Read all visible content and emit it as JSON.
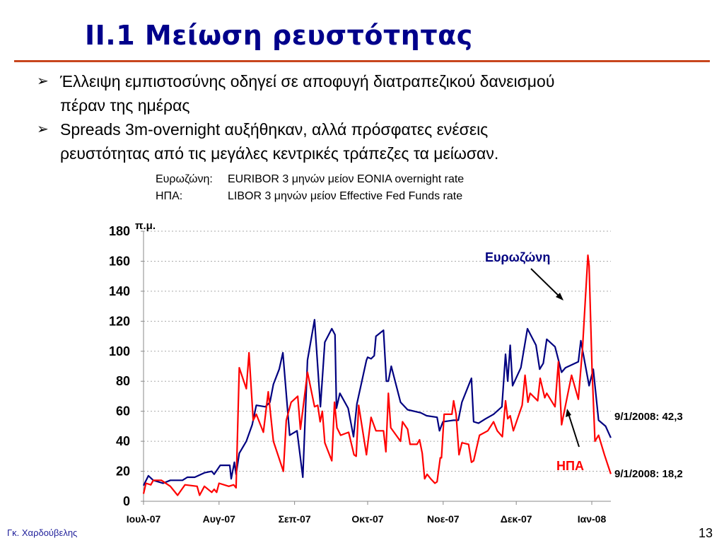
{
  "slide": {
    "title": "ΙΙ.1  Μείωση ρευστότητας",
    "bullets": [
      {
        "line1": "Έλλειψη εμπιστοσύνης οδηγεί σε αποφυγή διατραπεζικού δανεισμού",
        "line2": "πέραν της ημέρας"
      },
      {
        "line1": "Spreads 3m-overnight αυξήθηκαν, αλλά πρόσφατες ενέσεις",
        "line2": "ρευστότητας από τις μεγάλες κεντρικές τράπεζες τα μείωσαν."
      }
    ],
    "notes": [
      {
        "key": "Ευρωζώνη:",
        "value": "EURIBOR 3 μηνών μείον EONIA overnight rate"
      },
      {
        "key": "ΗΠΑ:",
        "value": "LIBOR 3 μηνών μείον Effective Fed Funds rate"
      }
    ],
    "author": "Γκ. Χαρδούβελης",
    "page_number": "13"
  },
  "chart_data": {
    "type": "line",
    "ylabel": "π.μ.",
    "ylim": [
      0,
      180
    ],
    "yticks": [
      "0",
      "20",
      "40",
      "60",
      "80",
      "100",
      "120",
      "140",
      "160",
      "180"
    ],
    "xlim_days_from_jul1_2007": [
      0,
      192
    ],
    "xticks": [
      {
        "label": "Ιουλ-07",
        "day": 0
      },
      {
        "label": "Αυγ-07",
        "day": 31
      },
      {
        "label": "Σεπ-07",
        "day": 62
      },
      {
        "label": "Οκτ-07",
        "day": 92
      },
      {
        "label": "Νοε-07",
        "day": 123
      },
      {
        "label": "Δεκ-07",
        "day": 153
      },
      {
        "label": "Ιαν-08",
        "day": 184
      }
    ],
    "grid": "horizontal-dotted",
    "series": [
      {
        "name": "Ευρωζώνη",
        "color": "#000080",
        "end_label": "9/1/2008: 42,3",
        "points": [
          [
            0,
            10.5
          ],
          [
            2,
            17
          ],
          [
            4,
            14
          ],
          [
            8,
            12
          ],
          [
            11,
            14
          ],
          [
            16,
            14
          ],
          [
            18,
            16
          ],
          [
            21,
            16
          ],
          [
            25,
            19
          ],
          [
            28,
            20
          ],
          [
            29,
            18
          ],
          [
            31.5,
            24
          ],
          [
            35.4,
            24
          ],
          [
            36,
            15
          ],
          [
            37.3,
            26
          ],
          [
            38,
            18
          ],
          [
            39.3,
            32
          ],
          [
            42.2,
            40
          ],
          [
            44.6,
            51
          ],
          [
            46.3,
            64
          ],
          [
            50,
            63
          ],
          [
            51.9,
            66
          ],
          [
            53.3,
            78
          ],
          [
            55.7,
            88
          ],
          [
            57.2,
            99
          ],
          [
            60,
            44
          ],
          [
            63,
            47
          ],
          [
            65.4,
            16
          ],
          [
            67.3,
            94
          ],
          [
            70.2,
            121
          ],
          [
            72.6,
            63
          ],
          [
            74.4,
            106
          ],
          [
            77.3,
            115
          ],
          [
            78.6,
            111
          ],
          [
            79.2,
            62
          ],
          [
            80.6,
            72
          ],
          [
            84,
            62
          ],
          [
            86.2,
            43
          ],
          [
            87.6,
            65
          ],
          [
            91.5,
            94
          ],
          [
            92,
            96
          ],
          [
            93.4,
            95
          ],
          [
            94.7,
            97
          ],
          [
            95.4,
            110
          ],
          [
            98.5,
            114
          ],
          [
            99.7,
            80
          ],
          [
            100.5,
            80
          ],
          [
            101.7,
            90
          ],
          [
            105.5,
            66
          ],
          [
            108.4,
            61
          ],
          [
            113.8,
            59
          ],
          [
            116.2,
            57
          ],
          [
            120.5,
            56
          ],
          [
            121.5,
            47
          ],
          [
            122.9,
            53
          ],
          [
            127.3,
            54
          ],
          [
            129.2,
            54
          ],
          [
            130.7,
            66
          ],
          [
            134.1,
            80
          ],
          [
            134.6,
            82
          ],
          [
            135.5,
            53
          ],
          [
            137.5,
            52
          ],
          [
            140.4,
            55
          ],
          [
            143.7,
            58
          ],
          [
            147.1,
            63
          ],
          [
            148.6,
            98
          ],
          [
            149.5,
            80
          ],
          [
            150.5,
            104
          ],
          [
            151.5,
            77
          ],
          [
            154.9,
            89
          ],
          [
            157.6,
            115
          ],
          [
            161.1,
            104
          ],
          [
            162.6,
            88
          ],
          [
            164.1,
            92
          ],
          [
            165.5,
            108
          ],
          [
            168.9,
            103
          ],
          [
            171.6,
            86
          ],
          [
            173.2,
            89
          ],
          [
            178.5,
            93
          ],
          [
            179.5,
            107
          ],
          [
            182.9,
            77
          ],
          [
            184.6,
            88
          ],
          [
            186.8,
            54
          ],
          [
            189.7,
            50
          ],
          [
            191.8,
            42.3
          ]
        ]
      },
      {
        "name": "ΗΠΑ",
        "color": "#ff0000",
        "end_label": "9/1/2008: 18,2",
        "points": [
          [
            0,
            5
          ],
          [
            1,
            12
          ],
          [
            3,
            11
          ],
          [
            4,
            14
          ],
          [
            7.3,
            14
          ],
          [
            11,
            10
          ],
          [
            14,
            4
          ],
          [
            17,
            11
          ],
          [
            22,
            10
          ],
          [
            23,
            4
          ],
          [
            25,
            10
          ],
          [
            28,
            6
          ],
          [
            29,
            8
          ],
          [
            30,
            6
          ],
          [
            31,
            12
          ],
          [
            35,
            10
          ],
          [
            37,
            11
          ],
          [
            38,
            9
          ],
          [
            39.3,
            89
          ],
          [
            42.2,
            75
          ],
          [
            43.3,
            99
          ],
          [
            45,
            54
          ],
          [
            46.3,
            58
          ],
          [
            49.2,
            46
          ],
          [
            51.2,
            73
          ],
          [
            53.3,
            40
          ],
          [
            57.4,
            20
          ],
          [
            58.6,
            54
          ],
          [
            60.6,
            66
          ],
          [
            63.3,
            70
          ],
          [
            64.4,
            48
          ],
          [
            67.3,
            86
          ],
          [
            70.2,
            63
          ],
          [
            71.5,
            64
          ],
          [
            72.5,
            53
          ],
          [
            73.4,
            60
          ],
          [
            74.4,
            39
          ],
          [
            77.3,
            27
          ],
          [
            78.4,
            66
          ],
          [
            79.4,
            49
          ],
          [
            80.9,
            44
          ],
          [
            84.2,
            46
          ],
          [
            86.4,
            31
          ],
          [
            87.3,
            30
          ],
          [
            88.3,
            64
          ],
          [
            91.5,
            31
          ],
          [
            93.4,
            56
          ],
          [
            95.4,
            47
          ],
          [
            98.5,
            47
          ],
          [
            99.5,
            33
          ],
          [
            100.5,
            72
          ],
          [
            101.5,
            49
          ],
          [
            105.5,
            40
          ],
          [
            106.3,
            53
          ],
          [
            108.4,
            48
          ],
          [
            109.4,
            38
          ],
          [
            112.3,
            38
          ],
          [
            113.3,
            41
          ],
          [
            114.4,
            32
          ],
          [
            115.4,
            15
          ],
          [
            116.4,
            18
          ],
          [
            117.9,
            15
          ],
          [
            119.6,
            12
          ],
          [
            120.5,
            13
          ],
          [
            121.8,
            29
          ],
          [
            122.3,
            29
          ],
          [
            123.4,
            58
          ],
          [
            126.6,
            58
          ],
          [
            127.3,
            67
          ],
          [
            128.3,
            58
          ],
          [
            129.5,
            31
          ],
          [
            130.7,
            39
          ],
          [
            133.4,
            38
          ],
          [
            134.6,
            26
          ],
          [
            135.5,
            27
          ],
          [
            137.9,
            44
          ],
          [
            141.3,
            47
          ],
          [
            143.7,
            53
          ],
          [
            145.2,
            47
          ],
          [
            147.3,
            43
          ],
          [
            148.6,
            67
          ],
          [
            149.5,
            55
          ],
          [
            150.5,
            57
          ],
          [
            151.8,
            47
          ],
          [
            155.4,
            64
          ],
          [
            156.6,
            84
          ],
          [
            157.8,
            66
          ],
          [
            158.7,
            72
          ],
          [
            161.8,
            67
          ],
          [
            162.8,
            82
          ],
          [
            164.7,
            69
          ],
          [
            165.5,
            72
          ],
          [
            168.9,
            63
          ],
          [
            170.3,
            93
          ],
          [
            171.6,
            51
          ],
          [
            175.7,
            84
          ],
          [
            178.5,
            68
          ],
          [
            180.2,
            102
          ],
          [
            182.4,
            164
          ],
          [
            182.9,
            157
          ],
          [
            184.1,
            89
          ],
          [
            185.3,
            40
          ],
          [
            186.8,
            44
          ],
          [
            189.2,
            31
          ],
          [
            191.8,
            18.2
          ]
        ]
      }
    ]
  }
}
